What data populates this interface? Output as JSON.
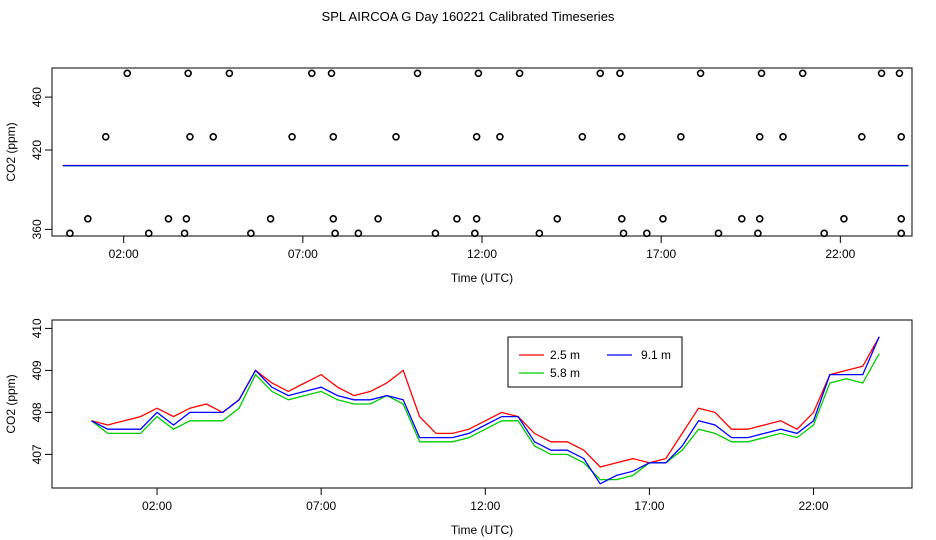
{
  "title": "SPL AIRCOA G  Day 160221  Calibrated Timeseries",
  "chart_data": [
    {
      "type": "scatter",
      "xlabel": "Time (UTC)",
      "ylabel": "CO2 (ppm)",
      "xlim": [
        0,
        24
      ],
      "ylim": [
        355,
        482
      ],
      "x_ticks": [
        {
          "value": 2,
          "label": "02:00"
        },
        {
          "value": 7,
          "label": "07:00"
        },
        {
          "value": 12,
          "label": "12:00"
        },
        {
          "value": 17,
          "label": "17:00"
        },
        {
          "value": 22,
          "label": "22:00"
        }
      ],
      "y_ticks": [
        {
          "value": 360,
          "label": "360"
        },
        {
          "value": 420,
          "label": "420"
        },
        {
          "value": 460,
          "label": "460"
        }
      ],
      "grid": false,
      "points": [
        {
          "x": 1.5,
          "y": 430
        },
        {
          "x": 2.1,
          "y": 478
        },
        {
          "x": 3.8,
          "y": 478
        },
        {
          "x": 3.85,
          "y": 430
        },
        {
          "x": 4.5,
          "y": 430
        },
        {
          "x": 4.95,
          "y": 478
        },
        {
          "x": 6.7,
          "y": 430
        },
        {
          "x": 7.25,
          "y": 478
        },
        {
          "x": 7.8,
          "y": 478
        },
        {
          "x": 7.85,
          "y": 430
        },
        {
          "x": 9.6,
          "y": 430
        },
        {
          "x": 10.2,
          "y": 478
        },
        {
          "x": 11.9,
          "y": 478
        },
        {
          "x": 11.85,
          "y": 430
        },
        {
          "x": 12.5,
          "y": 430
        },
        {
          "x": 13.05,
          "y": 478
        },
        {
          "x": 14.8,
          "y": 430
        },
        {
          "x": 15.3,
          "y": 478
        },
        {
          "x": 15.85,
          "y": 478
        },
        {
          "x": 15.9,
          "y": 430
        },
        {
          "x": 17.55,
          "y": 430
        },
        {
          "x": 18.1,
          "y": 478
        },
        {
          "x": 19.8,
          "y": 478
        },
        {
          "x": 19.75,
          "y": 430
        },
        {
          "x": 20.4,
          "y": 430
        },
        {
          "x": 20.95,
          "y": 478
        },
        {
          "x": 22.6,
          "y": 430
        },
        {
          "x": 23.15,
          "y": 478
        },
        {
          "x": 23.65,
          "y": 478
        },
        {
          "x": 23.7,
          "y": 430
        },
        {
          "x": 0.5,
          "y": 357
        },
        {
          "x": 1.0,
          "y": 368
        },
        {
          "x": 2.7,
          "y": 357
        },
        {
          "x": 3.25,
          "y": 368
        },
        {
          "x": 3.7,
          "y": 357
        },
        {
          "x": 3.75,
          "y": 368
        },
        {
          "x": 5.55,
          "y": 357
        },
        {
          "x": 6.1,
          "y": 368
        },
        {
          "x": 7.9,
          "y": 357
        },
        {
          "x": 7.85,
          "y": 368
        },
        {
          "x": 8.55,
          "y": 357
        },
        {
          "x": 9.1,
          "y": 368
        },
        {
          "x": 10.7,
          "y": 357
        },
        {
          "x": 11.3,
          "y": 368
        },
        {
          "x": 11.8,
          "y": 357
        },
        {
          "x": 11.85,
          "y": 368
        },
        {
          "x": 13.6,
          "y": 357
        },
        {
          "x": 14.1,
          "y": 368
        },
        {
          "x": 15.95,
          "y": 357
        },
        {
          "x": 15.9,
          "y": 368
        },
        {
          "x": 16.6,
          "y": 357
        },
        {
          "x": 17.05,
          "y": 368
        },
        {
          "x": 18.6,
          "y": 357
        },
        {
          "x": 19.25,
          "y": 368
        },
        {
          "x": 19.7,
          "y": 357
        },
        {
          "x": 19.75,
          "y": 368
        },
        {
          "x": 21.55,
          "y": 357
        },
        {
          "x": 22.1,
          "y": 368
        },
        {
          "x": 23.7,
          "y": 357
        },
        {
          "x": 23.7,
          "y": 368
        }
      ],
      "lines": [
        {
          "name": "2.5 m",
          "color": "#ff0000",
          "y": 408.3
        },
        {
          "name": "5.8 m",
          "color": "#00cc00",
          "y": 408.1
        },
        {
          "name": "9.1 m",
          "color": "#0000ff",
          "y": 408.2
        }
      ]
    },
    {
      "type": "line",
      "xlabel": "Time (UTC)",
      "ylabel": "CO2 (ppm)",
      "xlim": [
        -1.2,
        25
      ],
      "ylim": [
        406.2,
        410.2
      ],
      "x_ticks": [
        {
          "value": 2,
          "label": "02:00"
        },
        {
          "value": 7,
          "label": "07:00"
        },
        {
          "value": 12,
          "label": "12:00"
        },
        {
          "value": 17,
          "label": "17:00"
        },
        {
          "value": 22,
          "label": "22:00"
        }
      ],
      "y_ticks": [
        {
          "value": 407,
          "label": "407"
        },
        {
          "value": 408,
          "label": "408"
        },
        {
          "value": 409,
          "label": "409"
        },
        {
          "value": 410,
          "label": "410"
        }
      ],
      "grid": false,
      "legend_position": "top-center",
      "x": [
        0,
        0.5,
        1,
        1.5,
        2,
        2.5,
        3,
        3.5,
        4,
        4.5,
        5,
        5.5,
        6,
        6.5,
        7,
        7.5,
        8,
        8.5,
        9,
        9.5,
        10,
        10.5,
        11,
        11.5,
        12,
        12.5,
        13,
        13.5,
        14,
        14.5,
        15,
        15.5,
        16,
        16.5,
        17,
        17.5,
        18,
        18.5,
        19,
        19.5,
        20,
        20.5,
        21,
        21.5,
        22,
        22.5,
        23,
        23.5,
        24
      ],
      "series": [
        {
          "name": "2.5 m",
          "color": "#ff0000",
          "values": [
            407.8,
            407.7,
            407.8,
            407.9,
            408.1,
            407.9,
            408.1,
            408.2,
            408.0,
            408.3,
            409.0,
            408.7,
            408.5,
            408.7,
            408.9,
            408.6,
            408.4,
            408.5,
            408.7,
            409.0,
            407.9,
            407.5,
            407.5,
            407.6,
            407.8,
            408.0,
            407.9,
            407.5,
            407.3,
            407.3,
            407.1,
            406.7,
            406.8,
            406.9,
            406.8,
            406.9,
            407.5,
            408.1,
            408.0,
            407.6,
            407.6,
            407.7,
            407.8,
            407.6,
            408.0,
            408.9,
            409.0,
            409.1,
            409.8
          ]
        },
        {
          "name": "5.8 m",
          "color": "#00cc00",
          "values": [
            407.8,
            407.5,
            407.5,
            407.5,
            407.9,
            407.6,
            407.8,
            407.8,
            407.8,
            408.1,
            408.9,
            408.5,
            408.3,
            408.4,
            408.5,
            408.3,
            408.2,
            408.2,
            408.4,
            408.2,
            407.3,
            407.3,
            407.3,
            407.4,
            407.6,
            407.8,
            407.8,
            407.2,
            407.0,
            407.0,
            406.8,
            406.4,
            406.4,
            406.5,
            406.8,
            406.8,
            407.1,
            407.6,
            407.5,
            407.3,
            407.3,
            407.4,
            407.5,
            407.4,
            407.7,
            408.7,
            408.8,
            408.7,
            409.4
          ]
        },
        {
          "name": "9.1 m",
          "color": "#0000ff",
          "values": [
            407.8,
            407.6,
            407.6,
            407.6,
            408.0,
            407.7,
            408.0,
            408.0,
            408.0,
            408.3,
            409.0,
            408.6,
            408.4,
            408.5,
            408.6,
            408.4,
            408.3,
            408.3,
            408.4,
            408.3,
            407.4,
            407.4,
            407.4,
            407.5,
            407.7,
            407.9,
            407.9,
            407.3,
            407.1,
            407.1,
            406.9,
            406.3,
            406.5,
            406.6,
            406.8,
            406.8,
            407.2,
            407.8,
            407.7,
            407.4,
            407.4,
            407.5,
            407.6,
            407.5,
            407.8,
            408.9,
            408.9,
            408.9,
            409.8
          ]
        }
      ]
    }
  ]
}
